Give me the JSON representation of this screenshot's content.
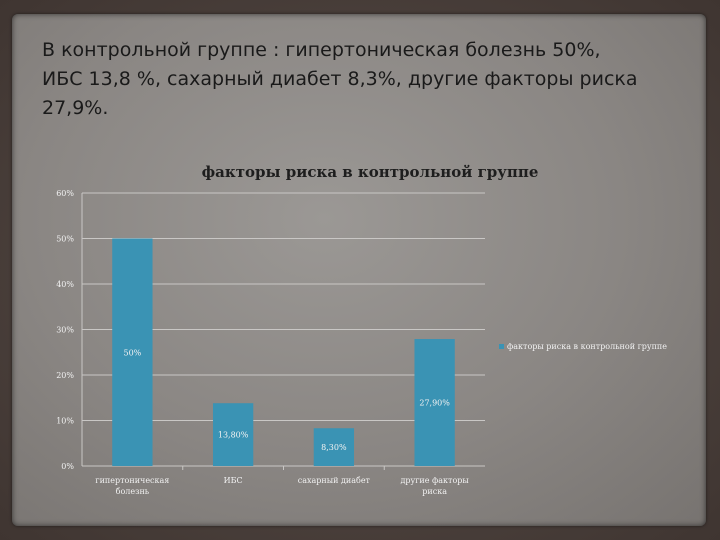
{
  "slide": {
    "heading_line1": "В контрольной группе : гипертоническая болезнь 50%,",
    "heading_line2": "ИБС 13,8 %, сахарный диабет 8,3%, другие факторы риска",
    "heading_line3": "27,9%."
  },
  "colors": {
    "bar": "#3a93b4",
    "grid": "#c9c7c5",
    "axis": "#c9c7c5"
  },
  "chart_data": {
    "type": "bar",
    "title": "факторы риска в контрольной группе",
    "categories": [
      [
        "гипертоническая",
        "болезнь"
      ],
      [
        "ИБС"
      ],
      [
        "сахарный диабет"
      ],
      [
        "другие факторы",
        "риска"
      ]
    ],
    "series": [
      {
        "name": "факторы риска в контрольной группе",
        "values": [
          50,
          13.8,
          8.3,
          27.9
        ],
        "data_labels": [
          "50%",
          "13,80%",
          "8,30%",
          "27,90%"
        ]
      }
    ],
    "yticks": [
      "0%",
      "10%",
      "20%",
      "30%",
      "40%",
      "50%",
      "60%"
    ],
    "ylim": [
      0,
      60
    ],
    "grid": true,
    "legend": "right"
  }
}
